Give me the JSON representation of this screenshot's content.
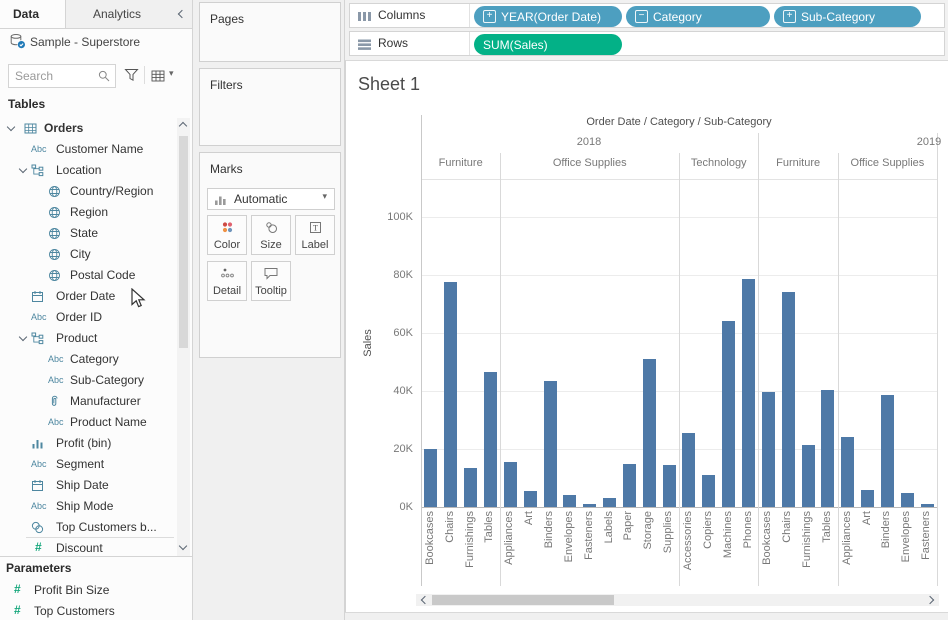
{
  "sidebar": {
    "tab_data": "Data",
    "tab_analytics": "Analytics",
    "datasource": "Sample - Superstore",
    "search": {
      "placeholder": "Search"
    },
    "tables_header": "Tables",
    "fields": [
      {
        "label": "Orders",
        "icon": "table",
        "indent": 0,
        "bold": true,
        "expanded": true
      },
      {
        "label": "Customer Name",
        "icon": "abc",
        "indent": 1
      },
      {
        "label": "Location",
        "icon": "hierarchy",
        "indent": 1,
        "expanded": true
      },
      {
        "label": "Country/Region",
        "icon": "globe",
        "indent": 2
      },
      {
        "label": "Region",
        "icon": "globe",
        "indent": 2
      },
      {
        "label": "State",
        "icon": "globe",
        "indent": 2
      },
      {
        "label": "City",
        "icon": "globe",
        "indent": 2
      },
      {
        "label": "Postal Code",
        "icon": "globe",
        "indent": 2
      },
      {
        "label": "Order Date",
        "icon": "calendar",
        "indent": 1
      },
      {
        "label": "Order ID",
        "icon": "abc",
        "indent": 1
      },
      {
        "label": "Product",
        "icon": "hierarchy",
        "indent": 1,
        "expanded": true
      },
      {
        "label": "Category",
        "icon": "abc",
        "indent": 2
      },
      {
        "label": "Sub-Category",
        "icon": "abc",
        "indent": 2
      },
      {
        "label": "Manufacturer",
        "icon": "paperclip",
        "indent": 2
      },
      {
        "label": "Product Name",
        "icon": "abc",
        "indent": 2
      },
      {
        "label": "Profit (bin)",
        "icon": "histogram",
        "indent": 1
      },
      {
        "label": "Segment",
        "icon": "abc",
        "indent": 1
      },
      {
        "label": "Ship Date",
        "icon": "calendar",
        "indent": 1
      },
      {
        "label": "Ship Mode",
        "icon": "abc",
        "indent": 1
      },
      {
        "label": "Top Customers b...",
        "icon": "sets",
        "indent": 1
      },
      {
        "label": "Discount",
        "icon": "hash",
        "indent": 1,
        "separator_above": true
      }
    ],
    "parameters_header": "Parameters",
    "parameters": [
      {
        "label": "Profit Bin Size",
        "icon": "hash"
      },
      {
        "label": "Top Customers",
        "icon": "hash"
      }
    ]
  },
  "cards": {
    "pages_label": "Pages",
    "filters_label": "Filters",
    "marks_label": "Marks",
    "mark_type": "Automatic",
    "buttons": [
      {
        "label": "Color",
        "icon": "color"
      },
      {
        "label": "Size",
        "icon": "size"
      },
      {
        "label": "Label",
        "icon": "label"
      },
      {
        "label": "Detail",
        "icon": "detail"
      },
      {
        "label": "Tooltip",
        "icon": "tooltip"
      }
    ]
  },
  "shelves": {
    "columns_label": "Columns",
    "rows_label": "Rows",
    "columns_pills": [
      {
        "label": "YEAR(Order Date)",
        "type": "dimension",
        "expand": "plus"
      },
      {
        "label": "Category",
        "type": "dimension",
        "expand": "minus"
      },
      {
        "label": "Sub-Category",
        "type": "dimension",
        "expand": "plus"
      }
    ],
    "rows_pills": [
      {
        "label": "SUM(Sales)",
        "type": "measure"
      }
    ]
  },
  "sheet_title": "Sheet 1",
  "colors": {
    "pill_dimension": "#4d9fc0",
    "pill_measure": "#03b187",
    "bar": "#4e79a7",
    "icon_blue": "#4e87a0",
    "icon_green": "#16a77c"
  },
  "chart_data": {
    "type": "bar",
    "title": "Sheet 1",
    "column_header": "Order Date / Category / Sub-Category",
    "ylabel": "Sales",
    "ytick_labels": [
      "0K",
      "20K",
      "40K",
      "60K",
      "80K",
      "100K"
    ],
    "yticks_k": [
      0,
      20,
      40,
      60,
      80,
      100
    ],
    "ylim_k": [
      0,
      113
    ],
    "grid": "horizontal",
    "legend": "none",
    "units": "thousands (K) of Sales",
    "year_labels": [
      "2018",
      "2019"
    ],
    "panes": [
      {
        "year": "2018",
        "category": "Furniture",
        "bars": [
          [
            "Bookcases",
            20
          ],
          [
            "Chairs",
            77.5
          ],
          [
            "Furnishings",
            13.5
          ],
          [
            "Tables",
            46.5
          ]
        ]
      },
      {
        "year": "2018",
        "category": "Office Supplies",
        "bars": [
          [
            "Appliances",
            15.5
          ],
          [
            "Art",
            5.5
          ],
          [
            "Binders",
            43.5
          ],
          [
            "Envelopes",
            4
          ],
          [
            "Fasteners",
            1
          ],
          [
            "Labels",
            3
          ],
          [
            "Paper",
            15
          ],
          [
            "Storage",
            51
          ],
          [
            "Supplies",
            14.5
          ]
        ]
      },
      {
        "year": "2018",
        "category": "Technology",
        "bars": [
          [
            "Accessories",
            25.5
          ],
          [
            "Copiers",
            11
          ],
          [
            "Machines",
            64
          ],
          [
            "Phones",
            78.5
          ]
        ]
      },
      {
        "year": "2019",
        "category": "Furniture",
        "bars": [
          [
            "Bookcases",
            39.5
          ],
          [
            "Chairs",
            74
          ],
          [
            "Furnishings",
            21.5
          ],
          [
            "Tables",
            40.5
          ]
        ]
      },
      {
        "year": "2019",
        "category": "Office Supplies",
        "clipped": true,
        "bars": [
          [
            "Appliances",
            24
          ],
          [
            "Art",
            6
          ],
          [
            "Binders",
            38.5
          ],
          [
            "Envelopes",
            5
          ],
          [
            "Fasteners",
            1
          ]
        ]
      }
    ]
  }
}
